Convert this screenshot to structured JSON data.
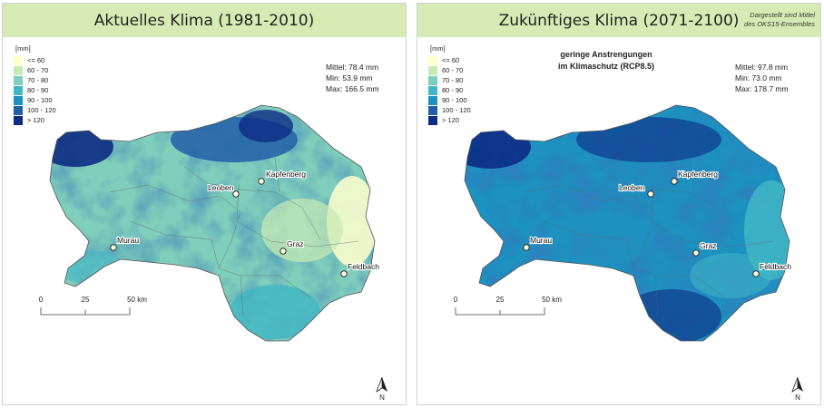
{
  "panels": [
    {
      "title": "Aktuelles Klima (1981-2010)",
      "stats": {
        "mean": "Mittel: 78.4 mm",
        "min": "Min: 53.9 mm",
        "max": "Max: 166.5 mm"
      },
      "dominant_class": 2
    },
    {
      "title": "Zukünftiges Klima (2071-2100)",
      "note_line1": "Dargestellt sind Mittel",
      "note_line2": "des OKS15-Ensembles",
      "scenario_line1": "geringe Anstrengungen",
      "scenario_line2": "im Klimaschutz (RCP8.5)",
      "stats": {
        "mean": "Mittel: 97.8 mm",
        "min": "Min: 73.0 mm",
        "max": "Max: 178.7 mm"
      },
      "dominant_class": 4
    }
  ],
  "legend": {
    "unit": "[mm]",
    "classes": [
      {
        "label": "<= 60",
        "color": "#ffffcc"
      },
      {
        "label": "60 - 70",
        "color": "#c7e9b4"
      },
      {
        "label": "70 - 80",
        "color": "#7fcdbb"
      },
      {
        "label": "80 - 90",
        "color": "#41b6c4"
      },
      {
        "label": "90 - 100",
        "color": "#1d91c0"
      },
      {
        "label": "100 - 120",
        "color": "#225ea8"
      },
      {
        "label": "> 120",
        "color": "#0c2c84"
      }
    ]
  },
  "cities": {
    "leoben": "Leoben",
    "kapfenberg": "Kapfenberg",
    "murau": "Murau",
    "graz": "Graz",
    "feldbach": "Feldbach"
  },
  "scale": {
    "t0": "0",
    "t1": "25",
    "t2": "50 km"
  },
  "north_label": "N"
}
